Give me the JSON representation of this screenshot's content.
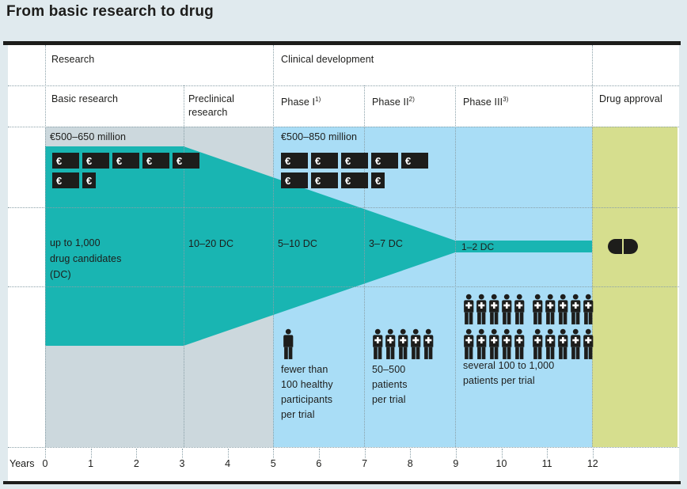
{
  "title": "From basic research to drug",
  "header": {
    "research_group": "Research",
    "clinical_group": "Clinical development",
    "columns": {
      "basic": {
        "label": "Basic research"
      },
      "preclinical": {
        "label": "Preclinical research"
      },
      "phase1": {
        "label": "Phase I",
        "sup": "1)"
      },
      "phase2": {
        "label": "Phase II",
        "sup": "2)"
      },
      "phase3": {
        "label": "Phase III",
        "sup": "3)"
      },
      "approval": {
        "label": "Drug approval"
      }
    }
  },
  "costs": {
    "research": {
      "label": "€500–650 million",
      "unit": "€",
      "rows": [
        [
          "full",
          "full",
          "full",
          "full",
          "full"
        ],
        [
          "full",
          "half"
        ]
      ]
    },
    "clinical": {
      "label": "€500–850 million",
      "unit": "€",
      "rows": [
        [
          "full",
          "full",
          "full",
          "full",
          "full"
        ],
        [
          "full",
          "full",
          "full",
          "half"
        ]
      ]
    }
  },
  "candidates": {
    "basic": "up to 1,000\ndrug candidates\n(DC)",
    "preclinical": "10–20 DC",
    "phase1": "5–10 DC",
    "phase2": "3–7 DC",
    "phase3": "1–2 DC"
  },
  "participants": {
    "phase1": {
      "icon": "person-icon",
      "cross": false,
      "rows": [
        [
          1
        ]
      ],
      "text": "fewer than\n100 healthy\nparticipants\nper trial"
    },
    "phase2": {
      "icon": "patient-icon",
      "cross": true,
      "rows": [
        [
          5
        ]
      ],
      "text": "50–500\npatients\nper trial"
    },
    "phase3": {
      "icon": "patient-icon",
      "cross": true,
      "rows": [
        [
          5,
          5
        ],
        [
          5,
          5
        ]
      ],
      "text": "several 100 to 1,000\npatients per trial"
    }
  },
  "approval": {
    "icon": "pill-icon"
  },
  "years": {
    "label": "Years",
    "ticks": [
      "0",
      "1",
      "2",
      "3",
      "4",
      "5",
      "6",
      "7",
      "8",
      "9",
      "10",
      "11",
      "12"
    ]
  },
  "colors": {
    "page_bg": "#e0eaee",
    "research_bg": "#ccd8dd",
    "clinical_bg": "#a9ddf6",
    "approval_bg": "#d6de8e",
    "funnel": "#19b5b2",
    "ink": "#1d1d1b",
    "grid": "#8aa0a8"
  }
}
